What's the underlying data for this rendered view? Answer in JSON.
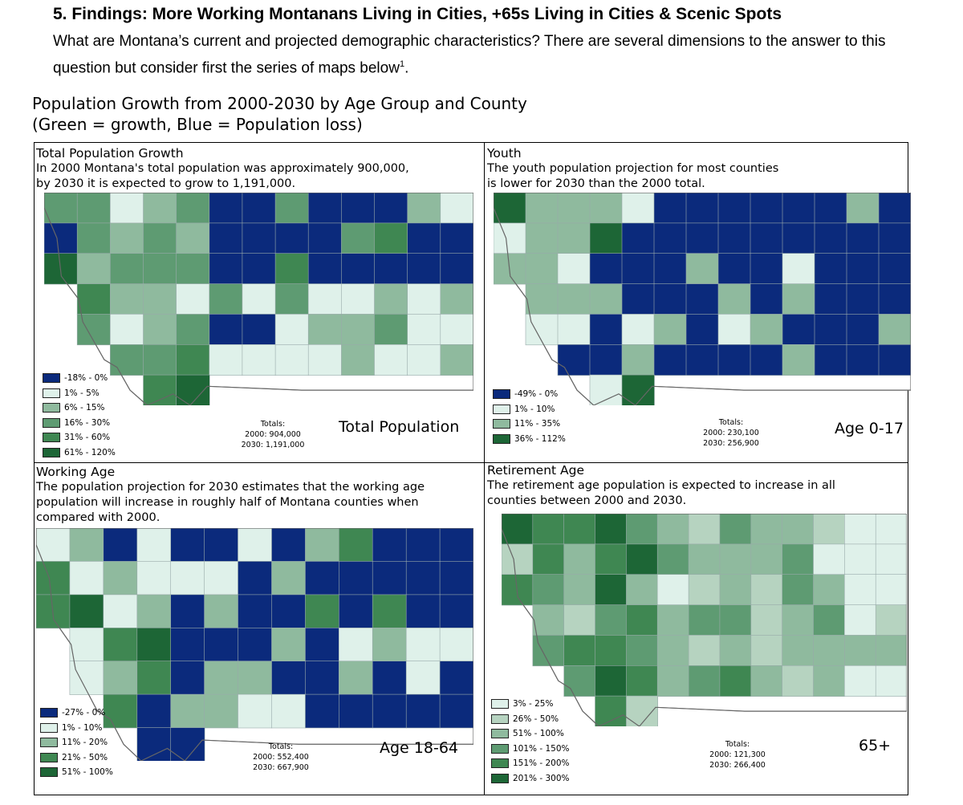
{
  "header": {
    "title": "5. Findings: More Working Montanans Living in Cities, +65s Living in Cities & Scenic Spots",
    "intro": "What are Montana’s current and projected demographic characteristics? There are several dimensions to the answer to this question but consider first the series of maps below",
    "footnote_mark": "1"
  },
  "figure": {
    "title_line1": "Population Growth from 2000-2030 by Age Group and County",
    "title_line2": "(Green = growth, Blue = Population loss)"
  },
  "colors": {
    "dark_blue": "#0b2a7c",
    "pale": "#dff1ea",
    "light_green": "#8fba9e",
    "mid_green": "#5e9b72",
    "green": "#3f8752",
    "dark_green": "#1d6636"
  },
  "panels": {
    "total": {
      "title": "Total Population Growth",
      "desc1": "In 2000 Montana's total population was approximately 900,000,",
      "desc2": "by 2030 it is expected to grow to 1,191,000.",
      "legend": [
        "-18% - 0%",
        "1% - 5%",
        "6% - 15%",
        "16% - 30%",
        "31% - 60%",
        "61% - 120%"
      ],
      "totals_heading": "Totals:",
      "totals_2000": "2000:  904,000",
      "totals_2030": "2030: 1,191,000",
      "map_label": "Total Population"
    },
    "youth": {
      "title": "Youth",
      "desc1": "The youth population projection for most counties",
      "desc2": "is lower for 2030 than the 2000 total.",
      "legend": [
        "-49% - 0%",
        "1% - 10%",
        "11% - 35%",
        "36% - 112%"
      ],
      "totals_heading": "Totals:",
      "totals_2000": "2000: 230,100",
      "totals_2030": "2030: 256,900",
      "map_label": "Age 0-17"
    },
    "working": {
      "title": "Working Age",
      "desc1": "The population projection for 2030 estimates that the working age",
      "desc2": "population will increase in roughly half of Montana counties when",
      "desc3": "compared with 2000.",
      "legend": [
        "-27% - 0%",
        "1% - 10%",
        "11% - 20%",
        "21% - 50%",
        "51% - 100%"
      ],
      "totals_heading": "Totals:",
      "totals_2000": "2000: 552,400",
      "totals_2030": "2030: 667,900",
      "map_label": "Age 18-64"
    },
    "retirement": {
      "title": "Retirement Age",
      "desc1": "The retirement age population is expected to increase in all",
      "desc2": "counties between 2000 and 2030.",
      "legend": [
        "3% - 25%",
        "26% - 50%",
        "51% - 100%",
        "101% - 150%",
        "151% - 200%",
        "201% - 300%"
      ],
      "totals_heading": "Totals:",
      "totals_2000": "2000: 121,300",
      "totals_2030": "2030: 266,400",
      "map_label": "65+"
    }
  }
}
